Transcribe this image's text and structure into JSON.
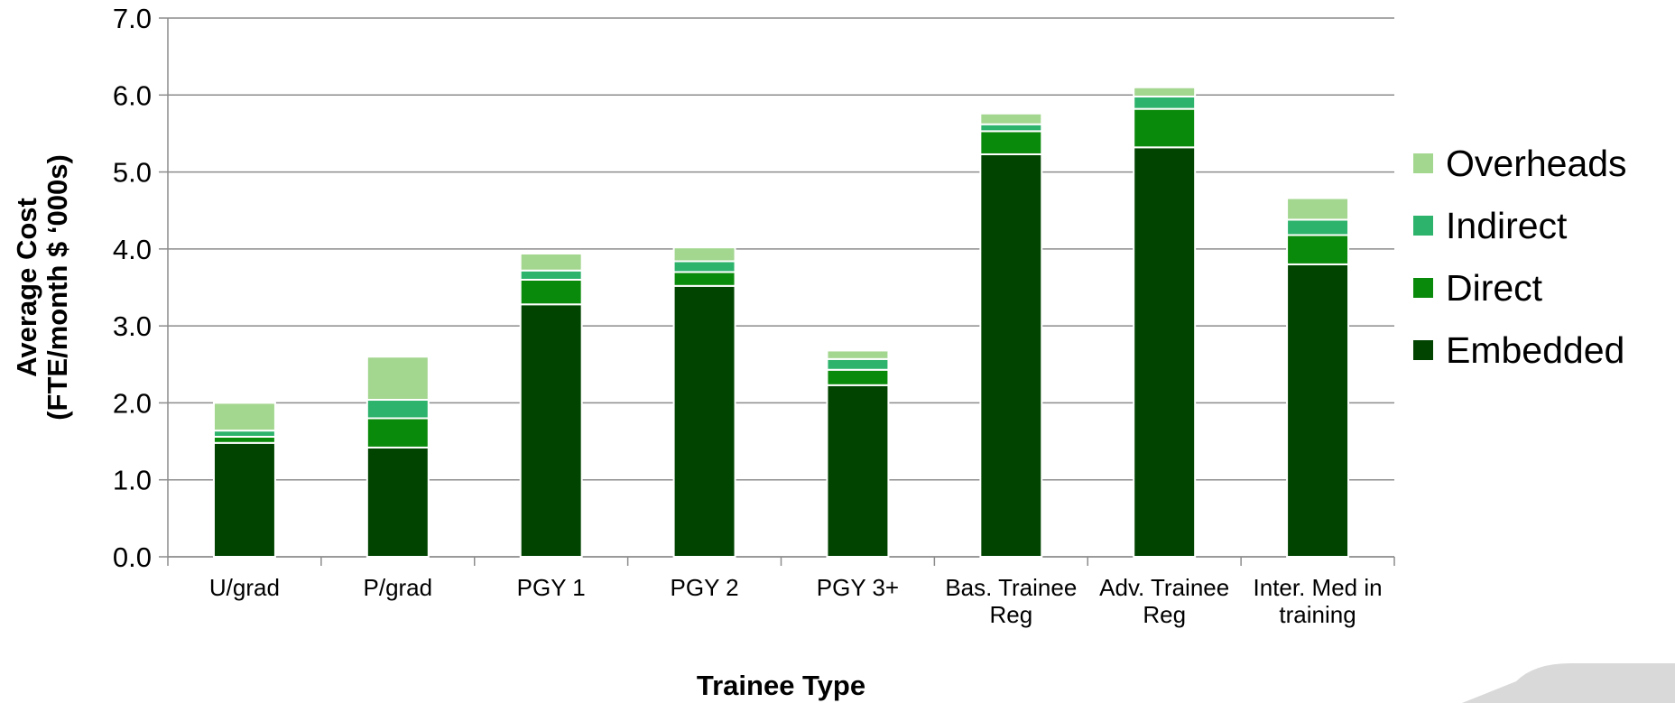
{
  "chart_data": {
    "type": "stacked_bar",
    "y_label": "Average Cost\n(FTE/month $ ‘000s)",
    "x_label": "Trainee Type",
    "categories": [
      "U/grad",
      "P/grad",
      "PGY 1",
      "PGY 2",
      "PGY 3+",
      "Bas. Trainee\nReg",
      "Adv. Trainee\nReg",
      "Inter. Med in\ntraining"
    ],
    "series": [
      {
        "name": "Embedded",
        "color": "#004400",
        "values": [
          1.48,
          1.42,
          3.28,
          3.52,
          2.23,
          5.23,
          5.32,
          3.8
        ]
      },
      {
        "name": "Direct",
        "color": "#0a8a0a",
        "values": [
          0.08,
          0.38,
          0.32,
          0.18,
          0.2,
          0.3,
          0.5,
          0.38
        ]
      },
      {
        "name": "Indirect",
        "color": "#2db36b",
        "values": [
          0.08,
          0.24,
          0.12,
          0.14,
          0.14,
          0.09,
          0.16,
          0.2
        ]
      },
      {
        "name": "Overheads",
        "color": "#a3d68f",
        "values": [
          0.36,
          0.56,
          0.22,
          0.18,
          0.11,
          0.14,
          0.12,
          0.28
        ]
      }
    ],
    "ylim": [
      0,
      7
    ],
    "yticks": [
      {
        "value": 0,
        "label": "0.0"
      },
      {
        "value": 1,
        "label": "1.0"
      },
      {
        "value": 2,
        "label": "2.0"
      },
      {
        "value": 3,
        "label": "3.0"
      },
      {
        "value": 4,
        "label": "4.0"
      },
      {
        "value": 5,
        "label": "5.0"
      },
      {
        "value": 6,
        "label": "6.0"
      },
      {
        "value": 7,
        "label": "7.0"
      }
    ],
    "grid": true,
    "legend": "right"
  }
}
